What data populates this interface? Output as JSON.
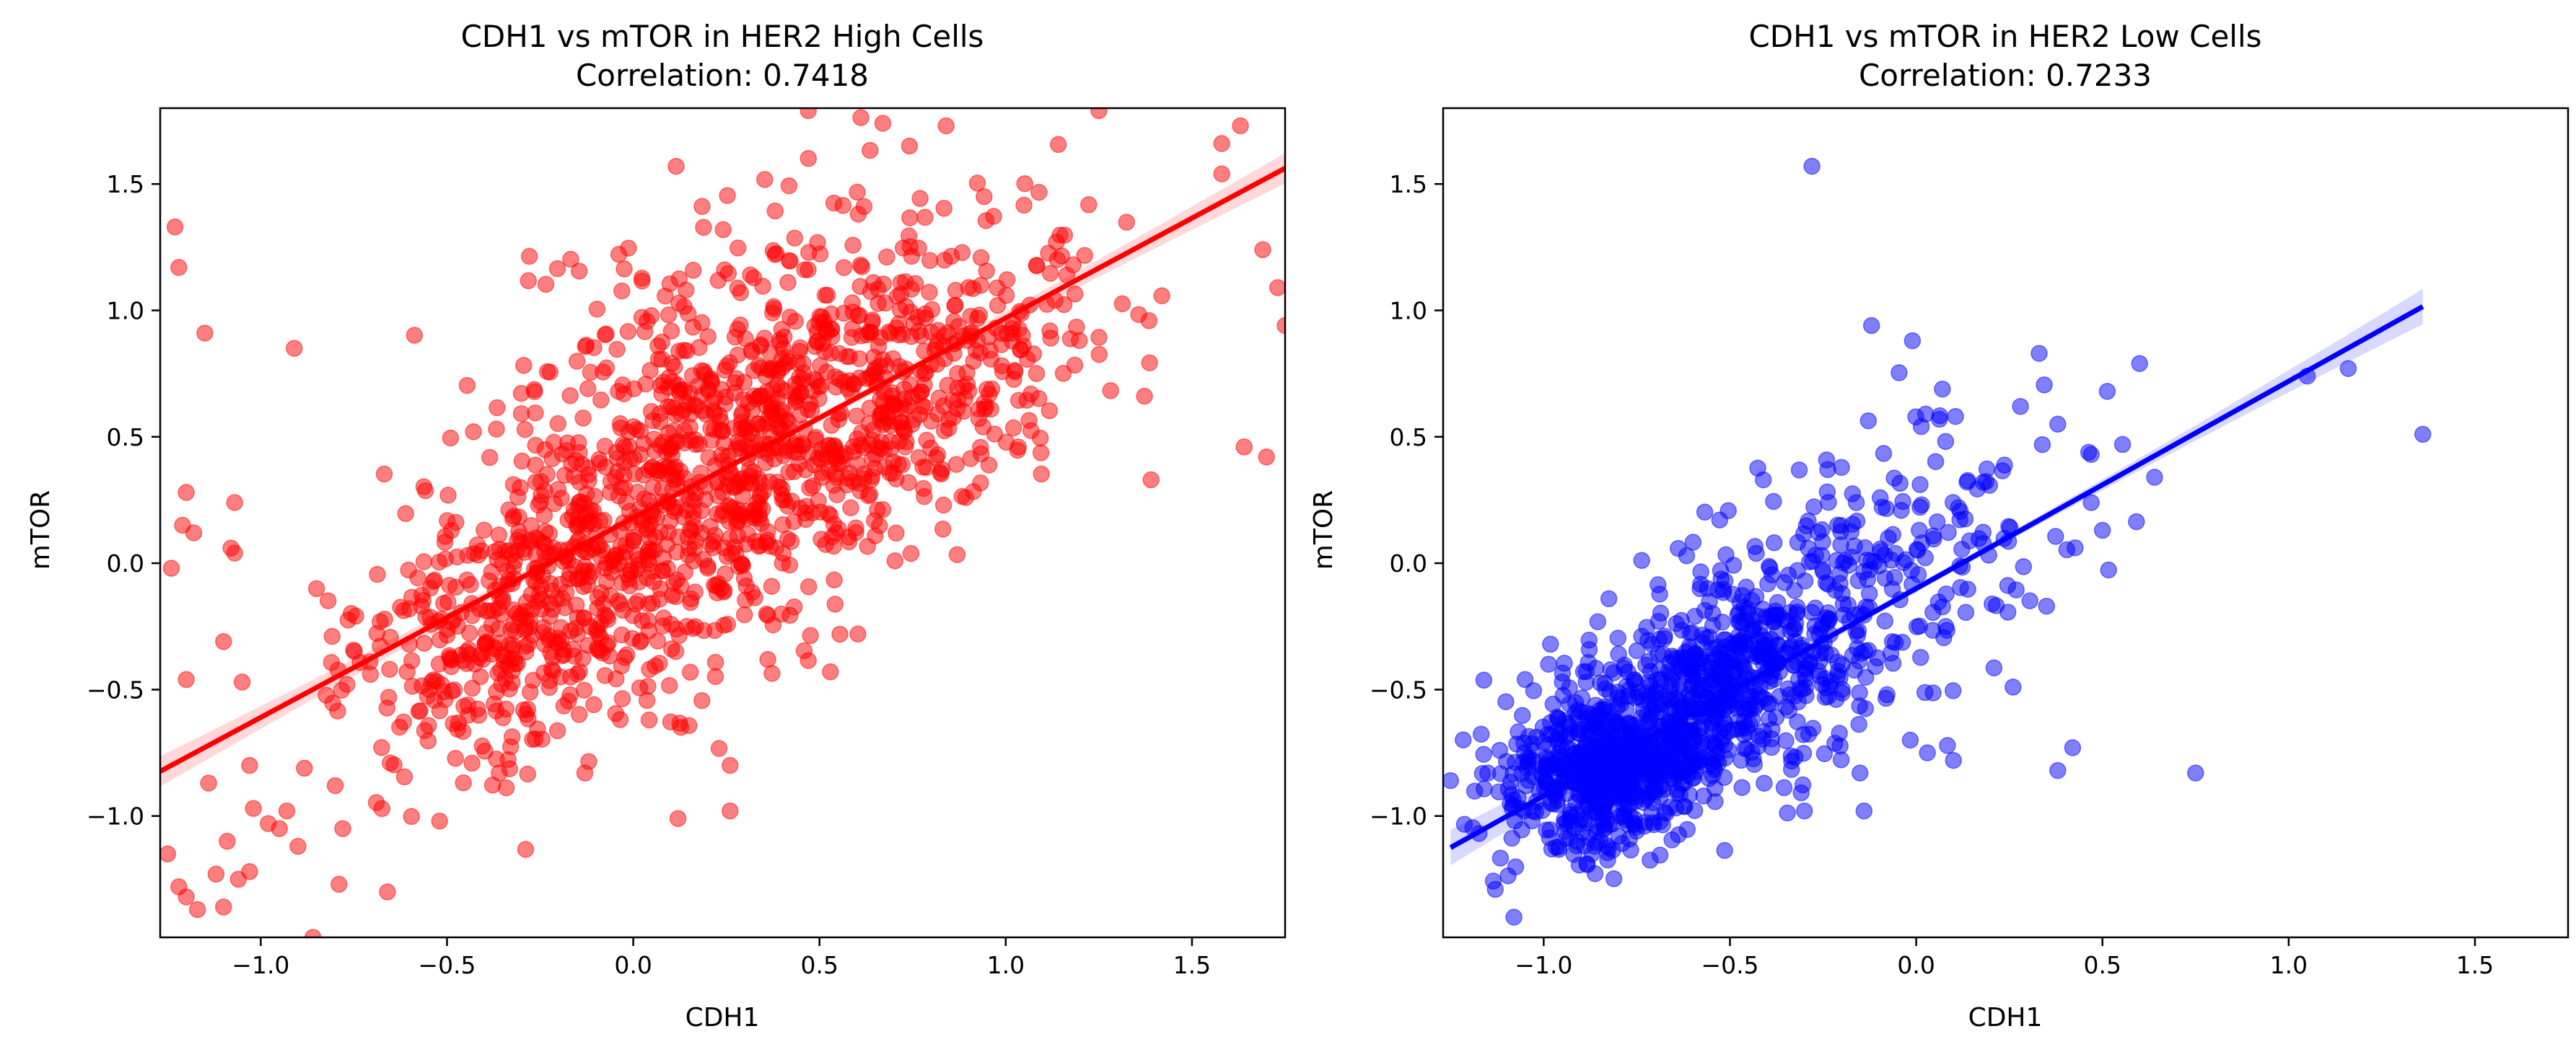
{
  "figure": {
    "background": "#ffffff"
  },
  "chart_data": [
    {
      "type": "scatter",
      "title": "CDH1 vs mTOR in HER2 High Cells",
      "subtitle": "Correlation: 0.7418",
      "xlabel": "CDH1",
      "ylabel": "mTOR",
      "xlim": [
        -1.27,
        1.75
      ],
      "ylim": [
        -1.48,
        1.8
      ],
      "xticks": [
        -1.0,
        -0.5,
        0.0,
        0.5,
        1.0,
        1.5
      ],
      "xtick_labels": [
        "−1.0",
        "−0.5",
        "0.0",
        "0.5",
        "1.0",
        "1.5"
      ],
      "yticks": [
        -1.0,
        -0.5,
        0.0,
        0.5,
        1.0,
        1.5
      ],
      "ytick_labels": [
        "−1.0",
        "−0.5",
        "0.0",
        "0.5",
        "1.0",
        "1.5"
      ],
      "color": "#ff0000",
      "marker_alpha": 0.5,
      "grid": false,
      "series": [
        {
          "points": [
            [
              -1.23,
              1.33
            ],
            [
              -1.22,
              1.17
            ],
            [
              -1.2,
              0.28
            ],
            [
              -1.18,
              0.12
            ],
            [
              -1.15,
              0.91
            ],
            [
              -1.24,
              -0.02
            ],
            [
              -1.21,
              0.15
            ],
            [
              -1.2,
              -0.46
            ],
            [
              -1.07,
              0.24
            ],
            [
              -1.08,
              0.06
            ],
            [
              -1.07,
              0.04
            ],
            [
              -1.1,
              -0.31
            ],
            [
              -1.05,
              -0.47
            ],
            [
              -1.03,
              -0.8
            ],
            [
              -1.14,
              -0.87
            ],
            [
              -1.02,
              -0.97
            ],
            [
              -0.98,
              -1.03
            ],
            [
              -0.95,
              -1.05
            ],
            [
              -0.93,
              -0.98
            ],
            [
              -0.9,
              -1.12
            ],
            [
              -0.86,
              -1.48
            ],
            [
              -1.25,
              -1.15
            ],
            [
              -1.22,
              -1.28
            ],
            [
              -1.2,
              -1.32
            ],
            [
              -1.17,
              -1.37
            ],
            [
              -1.12,
              -1.23
            ],
            [
              -1.1,
              -1.36
            ],
            [
              -1.09,
              -1.1
            ],
            [
              -1.06,
              -1.25
            ],
            [
              -1.03,
              -1.22
            ],
            [
              -0.91,
              0.85
            ],
            [
              -0.8,
              -0.88
            ],
            [
              -0.78,
              -1.05
            ],
            [
              -0.79,
              -1.27
            ],
            [
              -0.66,
              -1.3
            ],
            [
              -0.52,
              -1.02
            ],
            [
              -0.36,
              -0.83
            ],
            [
              -0.13,
              -0.83
            ],
            [
              0.12,
              -1.01
            ],
            [
              0.26,
              -0.98
            ],
            [
              0.26,
              -0.8
            ],
            [
              0.47,
              1.79
            ],
            [
              0.67,
              1.74
            ],
            [
              0.84,
              1.73
            ],
            [
              1.25,
              1.79
            ],
            [
              1.63,
              1.73
            ],
            [
              1.58,
              1.66
            ],
            [
              1.64,
              0.46
            ],
            [
              1.7,
              0.42
            ],
            [
              1.73,
              1.09
            ],
            [
              1.75,
              0.94
            ],
            [
              1.39,
              0.33
            ],
            [
              1.58,
              1.54
            ],
            [
              1.69,
              1.24
            ]
          ],
          "cloud": [
            {
              "cx": -0.05,
              "cy": 0.05,
              "sx": 0.32,
              "sy": 0.28,
              "n": 500
            },
            {
              "cx": 0.45,
              "cy": 0.55,
              "sx": 0.3,
              "sy": 0.3,
              "n": 550
            },
            {
              "cx": -0.35,
              "cy": -0.35,
              "sx": 0.22,
              "sy": 0.25,
              "n": 220
            },
            {
              "cx": 0.9,
              "cy": 0.85,
              "sx": 0.25,
              "sy": 0.3,
              "n": 200
            },
            {
              "cx": 0.2,
              "cy": 0.9,
              "sx": 0.3,
              "sy": 0.3,
              "n": 120
            }
          ]
        }
      ],
      "regression": {
        "slope": 0.79,
        "intercept": 0.18,
        "x_range": [
          -1.27,
          1.75
        ],
        "ci_halfwidth_ends": 0.06,
        "ci_halfwidth_mid": 0.015
      }
    },
    {
      "type": "scatter",
      "title": "CDH1 vs mTOR in HER2 Low Cells",
      "subtitle": "Correlation: 0.7233",
      "xlabel": "CDH1",
      "ylabel": "mTOR",
      "xlim": [
        -1.27,
        1.75
      ],
      "ylim": [
        -1.48,
        1.8
      ],
      "xticks": [
        -1.0,
        -0.5,
        0.0,
        0.5,
        1.0,
        1.5
      ],
      "xtick_labels": [
        "−1.0",
        "−0.5",
        "0.0",
        "0.5",
        "1.0",
        "1.5"
      ],
      "yticks": [
        -1.0,
        -0.5,
        0.0,
        0.5,
        1.0,
        1.5
      ],
      "ytick_labels": [
        "−1.0",
        "−0.5",
        "0.0",
        "0.5",
        "1.0",
        "1.5"
      ],
      "color": "#0000ff",
      "marker_alpha": 0.5,
      "grid": false,
      "series": [
        {
          "points": [
            [
              -0.28,
              1.57
            ],
            [
              -0.12,
              0.94
            ],
            [
              -0.01,
              0.88
            ],
            [
              0.33,
              0.83
            ],
            [
              1.36,
              0.51
            ],
            [
              1.16,
              0.77
            ],
            [
              1.05,
              0.74
            ],
            [
              0.64,
              0.34
            ],
            [
              0.5,
              0.13
            ],
            [
              0.47,
              0.43
            ],
            [
              0.47,
              0.24
            ],
            [
              0.38,
              0.55
            ],
            [
              0.28,
              0.62
            ],
            [
              0.35,
              -0.17
            ],
            [
              0.38,
              -0.82
            ],
            [
              0.42,
              -0.73
            ],
            [
              0.75,
              -0.83
            ],
            [
              0.26,
              -0.49
            ],
            [
              0.03,
              -0.75
            ],
            [
              0.1,
              -0.78
            ],
            [
              -0.14,
              -0.98
            ],
            [
              -0.3,
              -0.98
            ],
            [
              -1.15,
              -0.83
            ],
            [
              -1.25,
              -0.86
            ],
            [
              -1.13,
              -1.29
            ],
            [
              -1.08,
              -1.4
            ],
            [
              -1.09,
              -0.95
            ],
            [
              -0.95,
              -0.47
            ],
            [
              -1.05,
              -0.46
            ]
          ],
          "cloud": [
            {
              "cx": -0.82,
              "cy": -0.82,
              "sx": 0.14,
              "sy": 0.15,
              "n": 600
            },
            {
              "cx": -0.55,
              "cy": -0.5,
              "sx": 0.2,
              "sy": 0.2,
              "n": 500
            },
            {
              "cx": -0.3,
              "cy": -0.25,
              "sx": 0.25,
              "sy": 0.25,
              "n": 180
            },
            {
              "cx": 0.0,
              "cy": 0.05,
              "sx": 0.25,
              "sy": 0.28,
              "n": 110
            }
          ]
        }
      ],
      "regression": {
        "slope": 0.82,
        "intercept": -0.1,
        "x_range": [
          -1.25,
          1.36
        ],
        "ci_halfwidth_ends": 0.07,
        "ci_halfwidth_mid": 0.015
      }
    }
  ]
}
